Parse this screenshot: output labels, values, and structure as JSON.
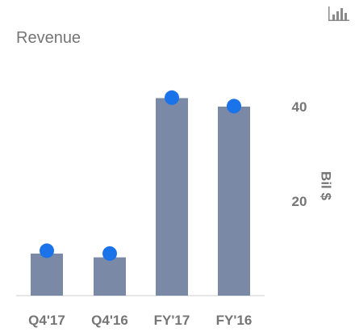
{
  "chart_data": {
    "type": "bar",
    "title": "Revenue",
    "categories": [
      "Q4'17",
      "Q4'16",
      "FY'17",
      "FY'16"
    ],
    "values": [
      8.9,
      8.1,
      41.8,
      40.0
    ],
    "marker_values": [
      9.5,
      8.9,
      41.9,
      40.1
    ],
    "ylabel": "Bil $",
    "yticks": [
      20,
      40
    ],
    "ylim": [
      0,
      42
    ],
    "grid": false,
    "y_axis_side": "right",
    "colors": {
      "bar": "#7a89a5",
      "marker": "#1a73e8",
      "baseline": "#cccccc"
    }
  },
  "toolbar": {
    "chart_type_icon": "bar-chart-icon"
  }
}
